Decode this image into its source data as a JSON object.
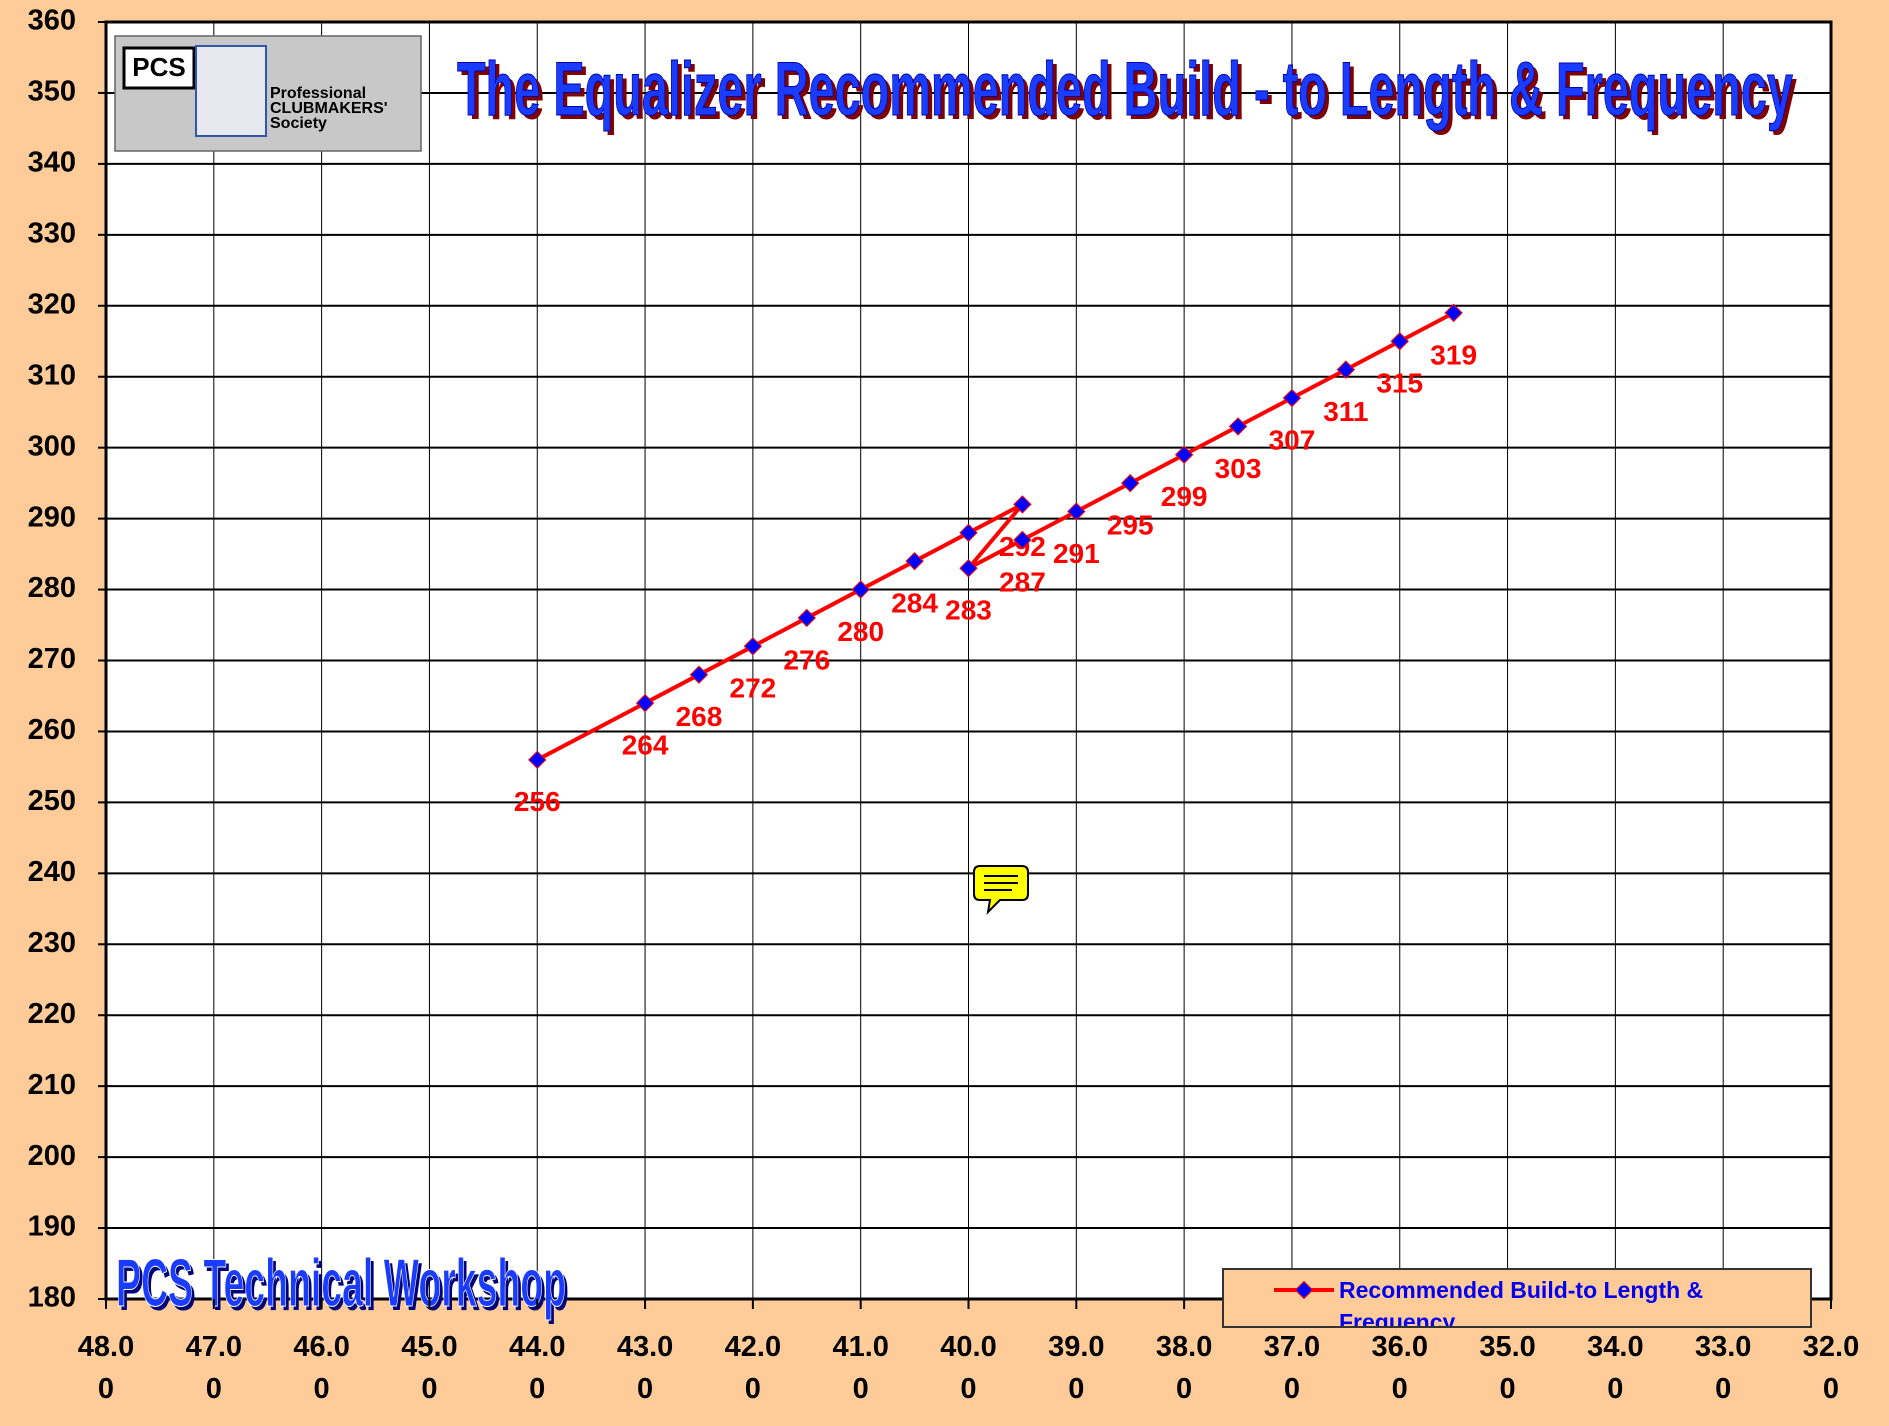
{
  "chart_data": {
    "type": "line",
    "title": "The Equalizer Recommended Build - to Length & Frequency",
    "logo": {
      "mark": "PCS",
      "text": "Professional CLUBMAKERS' Society"
    },
    "footer": "PCS Technical Workshop",
    "x": [
      44.0,
      43.0,
      42.5,
      42.0,
      41.5,
      41.0,
      40.5,
      40.0,
      39.5,
      40.0,
      39.5,
      39.0,
      38.5,
      38.0,
      37.5,
      37.0,
      36.5,
      36.0,
      35.5
    ],
    "series": [
      {
        "name": "Recommended Build-to Length & Frequency",
        "color": "#FF0000",
        "marker_color": "#0000FF",
        "values": [
          256,
          264,
          268,
          272,
          276,
          280,
          284,
          288,
          292,
          283,
          287,
          291,
          295,
          299,
          303,
          307,
          311,
          315,
          319
        ],
        "value_labels": [
          "256",
          "264",
          "268",
          "272",
          "276",
          "280",
          "284",
          null,
          "292",
          "283",
          "287",
          "291",
          "295",
          "299",
          "303",
          "307",
          "311",
          "315",
          "319"
        ]
      }
    ],
    "xlim": [
      48,
      32
    ],
    "xticks": [
      {
        "value": 48,
        "label": "48.00"
      },
      {
        "value": 47,
        "label": "47.00"
      },
      {
        "value": 46,
        "label": "46.00"
      },
      {
        "value": 45,
        "label": "45.00"
      },
      {
        "value": 44,
        "label": "44.00"
      },
      {
        "value": 43,
        "label": "43.00"
      },
      {
        "value": 42,
        "label": "42.00"
      },
      {
        "value": 41,
        "label": "41.00"
      },
      {
        "value": 40,
        "label": "40.00"
      },
      {
        "value": 39,
        "label": "39.00"
      },
      {
        "value": 38,
        "label": "38.00"
      },
      {
        "value": 37,
        "label": "37.00"
      },
      {
        "value": 36,
        "label": "36.00"
      },
      {
        "value": 35,
        "label": "35.00"
      },
      {
        "value": 34,
        "label": "34.00"
      },
      {
        "value": 33,
        "label": "33.00"
      },
      {
        "value": 32,
        "label": "32.00"
      }
    ],
    "ylim": [
      180,
      360
    ],
    "yticks": [
      180,
      190,
      200,
      210,
      220,
      230,
      240,
      250,
      260,
      270,
      280,
      290,
      300,
      310,
      320,
      330,
      340,
      350,
      360
    ],
    "grid": true,
    "legend": "lower right"
  }
}
